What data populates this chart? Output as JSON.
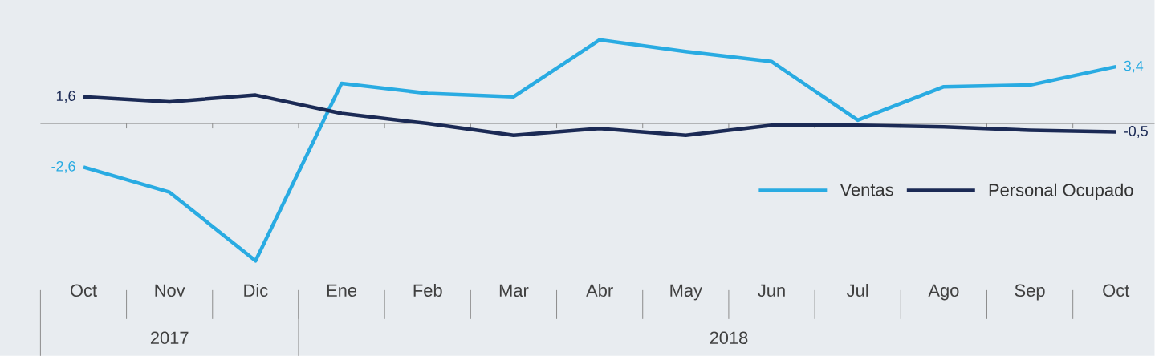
{
  "chart_data": {
    "type": "line",
    "categories": [
      "Oct",
      "Nov",
      "Dic",
      "Ene",
      "Feb",
      "Mar",
      "Abr",
      "May",
      "Jun",
      "Jul",
      "Ago",
      "Sep",
      "Oct"
    ],
    "series": [
      {
        "name": "Ventas",
        "color": "#29abe2",
        "values": [
          -2.6,
          -4.1,
          -8.2,
          2.4,
          1.8,
          1.6,
          5.0,
          4.3,
          3.7,
          0.2,
          2.2,
          2.3,
          3.4
        ],
        "value_labels": [
          "-2,6",
          null,
          null,
          null,
          null,
          null,
          null,
          null,
          null,
          null,
          null,
          null,
          "3,4"
        ]
      },
      {
        "name": "Personal Ocupado",
        "color": "#1b2a55",
        "values": [
          1.6,
          1.3,
          1.7,
          0.6,
          0.0,
          -0.7,
          -0.3,
          -0.7,
          -0.1,
          -0.1,
          -0.2,
          -0.4,
          -0.5
        ],
        "value_labels": [
          "1,6",
          null,
          null,
          null,
          null,
          null,
          null,
          null,
          null,
          null,
          null,
          null,
          "-0,5"
        ]
      }
    ],
    "annotations": [
      "2017",
      "2018"
    ],
    "legend": "bottom right",
    "marker": "none",
    "line_style": "solid"
  }
}
